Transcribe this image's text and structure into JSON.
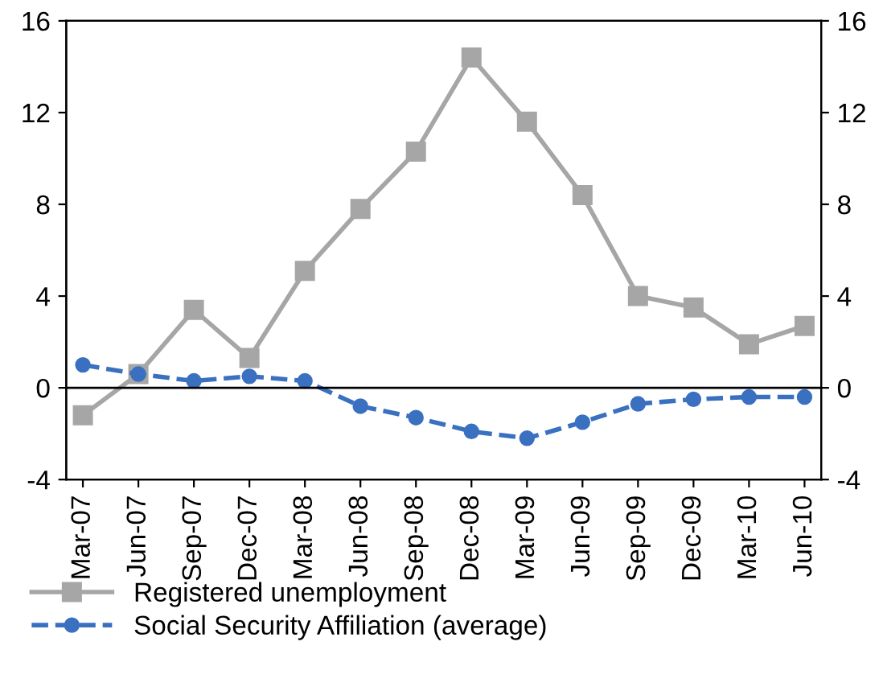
{
  "chart_data": {
    "type": "line",
    "categories": [
      "Mar-07",
      "Jun-07",
      "Sep-07",
      "Dec-07",
      "Mar-08",
      "Jun-08",
      "Sep-08",
      "Dec-08",
      "Mar-09",
      "Jun-09",
      "Sep-09",
      "Dec-09",
      "Mar-10",
      "Jun-10"
    ],
    "series": [
      {
        "name": "Registered unemployment",
        "color": "#a6a6a6",
        "marker": "square",
        "line_style": "solid",
        "values": [
          -1.2,
          0.6,
          3.4,
          1.3,
          5.1,
          7.8,
          10.3,
          14.4,
          11.6,
          8.4,
          4.0,
          3.5,
          1.9,
          2.7
        ]
      },
      {
        "name": "Social Security Affiliation (average)",
        "color": "#3a70c0",
        "marker": "circle",
        "line_style": "dashed",
        "values": [
          1.0,
          0.6,
          0.3,
          0.5,
          0.3,
          -0.8,
          -1.3,
          -1.9,
          -2.2,
          -1.5,
          -0.7,
          -0.5,
          -0.4,
          -0.4
        ]
      }
    ],
    "ylim": [
      -4,
      16
    ],
    "yticks": [
      -4,
      0,
      4,
      8,
      12,
      16
    ],
    "y2lim": [
      -4,
      16
    ],
    "y2ticks": [
      -4,
      0,
      4,
      8,
      12,
      16
    ],
    "grid": false,
    "ref_lines": [
      {
        "axis": "y",
        "value": 0,
        "color": "#000000"
      }
    ],
    "legend": "bottom"
  }
}
